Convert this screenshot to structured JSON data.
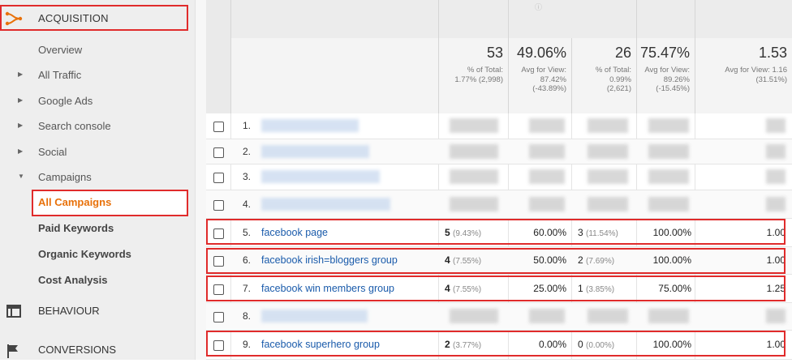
{
  "sidebar": {
    "acquisition_label": "ACQUISITION",
    "items": [
      {
        "label": "Overview",
        "arrow": ""
      },
      {
        "label": "All Traffic",
        "arrow": "▶"
      },
      {
        "label": "Google Ads",
        "arrow": "▶"
      },
      {
        "label": "Search console",
        "arrow": "▶"
      },
      {
        "label": "Social",
        "arrow": "▶"
      },
      {
        "label": "Campaigns",
        "arrow": "▼"
      }
    ],
    "sub_items": [
      {
        "label": "All Campaigns"
      },
      {
        "label": "Paid Keywords"
      },
      {
        "label": "Organic Keywords"
      },
      {
        "label": "Cost Analysis"
      }
    ],
    "behaviour_label": "BEHAVIOUR",
    "conversions_label": "CONVERSIONS",
    "accent_color": "#e8710a",
    "highlight_color": "#e02b2b"
  },
  "summary": [
    {
      "big": "53",
      "sub1": "% of Total:",
      "sub2": "1.77% (2,998)",
      "sub3": ""
    },
    {
      "big": "49.06%",
      "sub1": "Avg for View:",
      "sub2": "87.42%",
      "sub3": "(-43.89%)"
    },
    {
      "big": "26",
      "sub1": "% of Total:",
      "sub2": "0.99%",
      "sub3": "(2,621)"
    },
    {
      "big": "75.47%",
      "sub1": "Avg for View:",
      "sub2": "89.26%",
      "sub3": "(-15.45%)"
    },
    {
      "big": "1.53",
      "sub1": "Avg for View: 1.16",
      "sub2": "(31.51%)",
      "sub3": ""
    }
  ],
  "rows": [
    {
      "num": "1.",
      "name": "",
      "c1": "",
      "c1p": "",
      "c2": "",
      "c3": "",
      "c3p": "",
      "c4": "",
      "c5": ""
    },
    {
      "num": "2.",
      "name": "",
      "c1": "",
      "c1p": "",
      "c2": "",
      "c3": "",
      "c3p": "",
      "c4": "",
      "c5": ""
    },
    {
      "num": "3.",
      "name": "",
      "c1": "",
      "c1p": "",
      "c2": "",
      "c3": "",
      "c3p": "",
      "c4": "",
      "c5": ""
    },
    {
      "num": "4.",
      "name": "",
      "c1": "",
      "c1p": "",
      "c2": "",
      "c3": "",
      "c3p": "",
      "c4": "",
      "c5": ""
    },
    {
      "num": "5.",
      "name": "facebook page",
      "c1": "5",
      "c1p": "(9.43%)",
      "c2": "60.00%",
      "c3": "3",
      "c3p": "(11.54%)",
      "c4": "100.00%",
      "c5": "1.00"
    },
    {
      "num": "6.",
      "name": "facebook irish=bloggers group",
      "c1": "4",
      "c1p": "(7.55%)",
      "c2": "50.00%",
      "c3": "2",
      "c3p": "(7.69%)",
      "c4": "100.00%",
      "c5": "1.00"
    },
    {
      "num": "7.",
      "name": "facebook win members group",
      "c1": "4",
      "c1p": "(7.55%)",
      "c2": "25.00%",
      "c3": "1",
      "c3p": "(3.85%)",
      "c4": "75.00%",
      "c5": "1.25"
    },
    {
      "num": "8.",
      "name": "",
      "c1": "",
      "c1p": "",
      "c2": "",
      "c3": "",
      "c3p": "",
      "c4": "",
      "c5": ""
    },
    {
      "num": "9.",
      "name": "facebook superhero group",
      "c1": "2",
      "c1p": "(3.77%)",
      "c2": "0.00%",
      "c3": "0",
      "c3p": "(0.00%)",
      "c4": "100.00%",
      "c5": "1.00"
    }
  ]
}
